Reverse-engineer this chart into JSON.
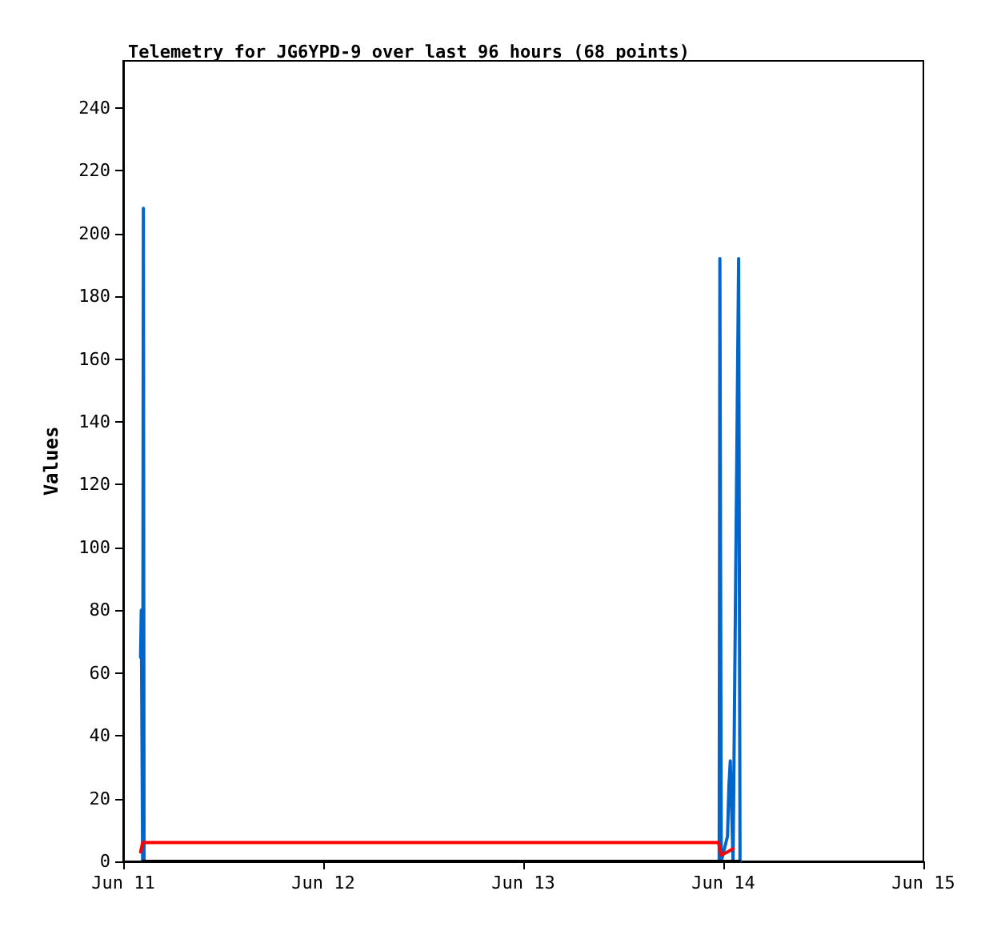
{
  "chart_data": {
    "type": "line",
    "title": "Telemetry for JG6YPD-9 over last 96 hours (68 points)",
    "ylabel": "Values",
    "xlim": [
      "--06-11",
      "--06-15"
    ],
    "xticks": [
      {
        "value": "--06-11",
        "label": "Jun 11"
      },
      {
        "value": "--06-12",
        "label": "Jun 12"
      },
      {
        "value": "--06-13",
        "label": "Jun 13"
      },
      {
        "value": "--06-14",
        "label": "Jun 14"
      },
      {
        "value": "--06-15",
        "label": "Jun 15"
      }
    ],
    "ylim": [
      0,
      255
    ],
    "yticks": [
      0,
      20,
      40,
      60,
      80,
      100,
      120,
      140,
      160,
      180,
      200,
      220,
      240
    ],
    "grid": false,
    "legend": false,
    "marker": "none",
    "line_style": "solid",
    "series": [
      {
        "color": "#0066cc",
        "x": [
          "--06-11T02:05",
          "--06-11T02:10",
          "--06-11T02:20",
          "--06-11T02:25",
          "--06-11T02:30",
          "--06-13T23:30",
          "--06-13T23:35",
          "--06-13T23:45",
          "--06-14T00:30",
          "--06-14T00:40",
          "--06-14T00:50",
          "--06-14T01:00",
          "--06-14T01:10",
          "--06-14T01:50",
          "--06-14T02:00"
        ],
        "values": [
          65,
          80,
          0,
          208,
          0,
          0,
          192,
          0,
          8,
          24,
          32,
          16,
          0,
          192,
          0
        ]
      },
      {
        "color": "#ff0000",
        "x": [
          "--06-11T02:05",
          "--06-11T02:20",
          "--06-13T23:25",
          "--06-13T23:45",
          "--06-14T00:30",
          "--06-14T01:10"
        ],
        "values": [
          3,
          6,
          6,
          2,
          3,
          4
        ]
      },
      {
        "color": "#000000",
        "x": [
          "--06-11T02:20",
          "--06-14T01:55"
        ],
        "values": [
          0,
          0
        ]
      }
    ]
  }
}
